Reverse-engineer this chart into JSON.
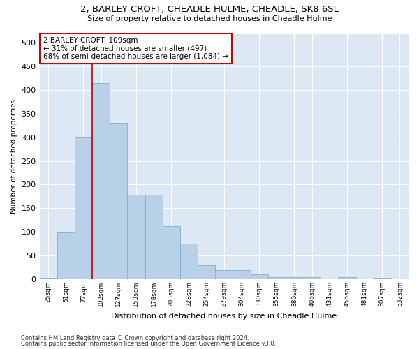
{
  "title": "2, BARLEY CROFT, CHEADLE HULME, CHEADLE, SK8 6SL",
  "subtitle": "Size of property relative to detached houses in Cheadle Hulme",
  "xlabel": "Distribution of detached houses by size in Cheadle Hulme",
  "ylabel": "Number of detached properties",
  "categories": [
    "26sqm",
    "51sqm",
    "77sqm",
    "102sqm",
    "127sqm",
    "153sqm",
    "178sqm",
    "203sqm",
    "228sqm",
    "254sqm",
    "279sqm",
    "304sqm",
    "330sqm",
    "355sqm",
    "380sqm",
    "406sqm",
    "431sqm",
    "456sqm",
    "481sqm",
    "507sqm",
    "532sqm"
  ],
  "values": [
    3,
    99,
    301,
    415,
    330,
    178,
    178,
    112,
    75,
    29,
    19,
    19,
    10,
    5,
    5,
    5,
    2,
    5,
    2,
    3,
    2
  ],
  "bar_color": "#b8d0e8",
  "bar_edge_color": "#7bafd4",
  "vline_x_index": 3,
  "vline_color": "#cc0000",
  "annotation_text": "2 BARLEY CROFT: 109sqm\n← 31% of detached houses are smaller (497)\n68% of semi-detached houses are larger (1,084) →",
  "annotation_box_color": "#ffffff",
  "annotation_box_edge": "#cc0000",
  "ylim": [
    0,
    520
  ],
  "yticks": [
    0,
    50,
    100,
    150,
    200,
    250,
    300,
    350,
    400,
    450,
    500
  ],
  "footer1": "Contains HM Land Registry data © Crown copyright and database right 2024.",
  "footer2": "Contains public sector information licensed under the Open Government Licence v3.0.",
  "plot_bg_color": "#dce9f5",
  "fig_bg_color": "#ffffff",
  "grid_color": "#ffffff"
}
